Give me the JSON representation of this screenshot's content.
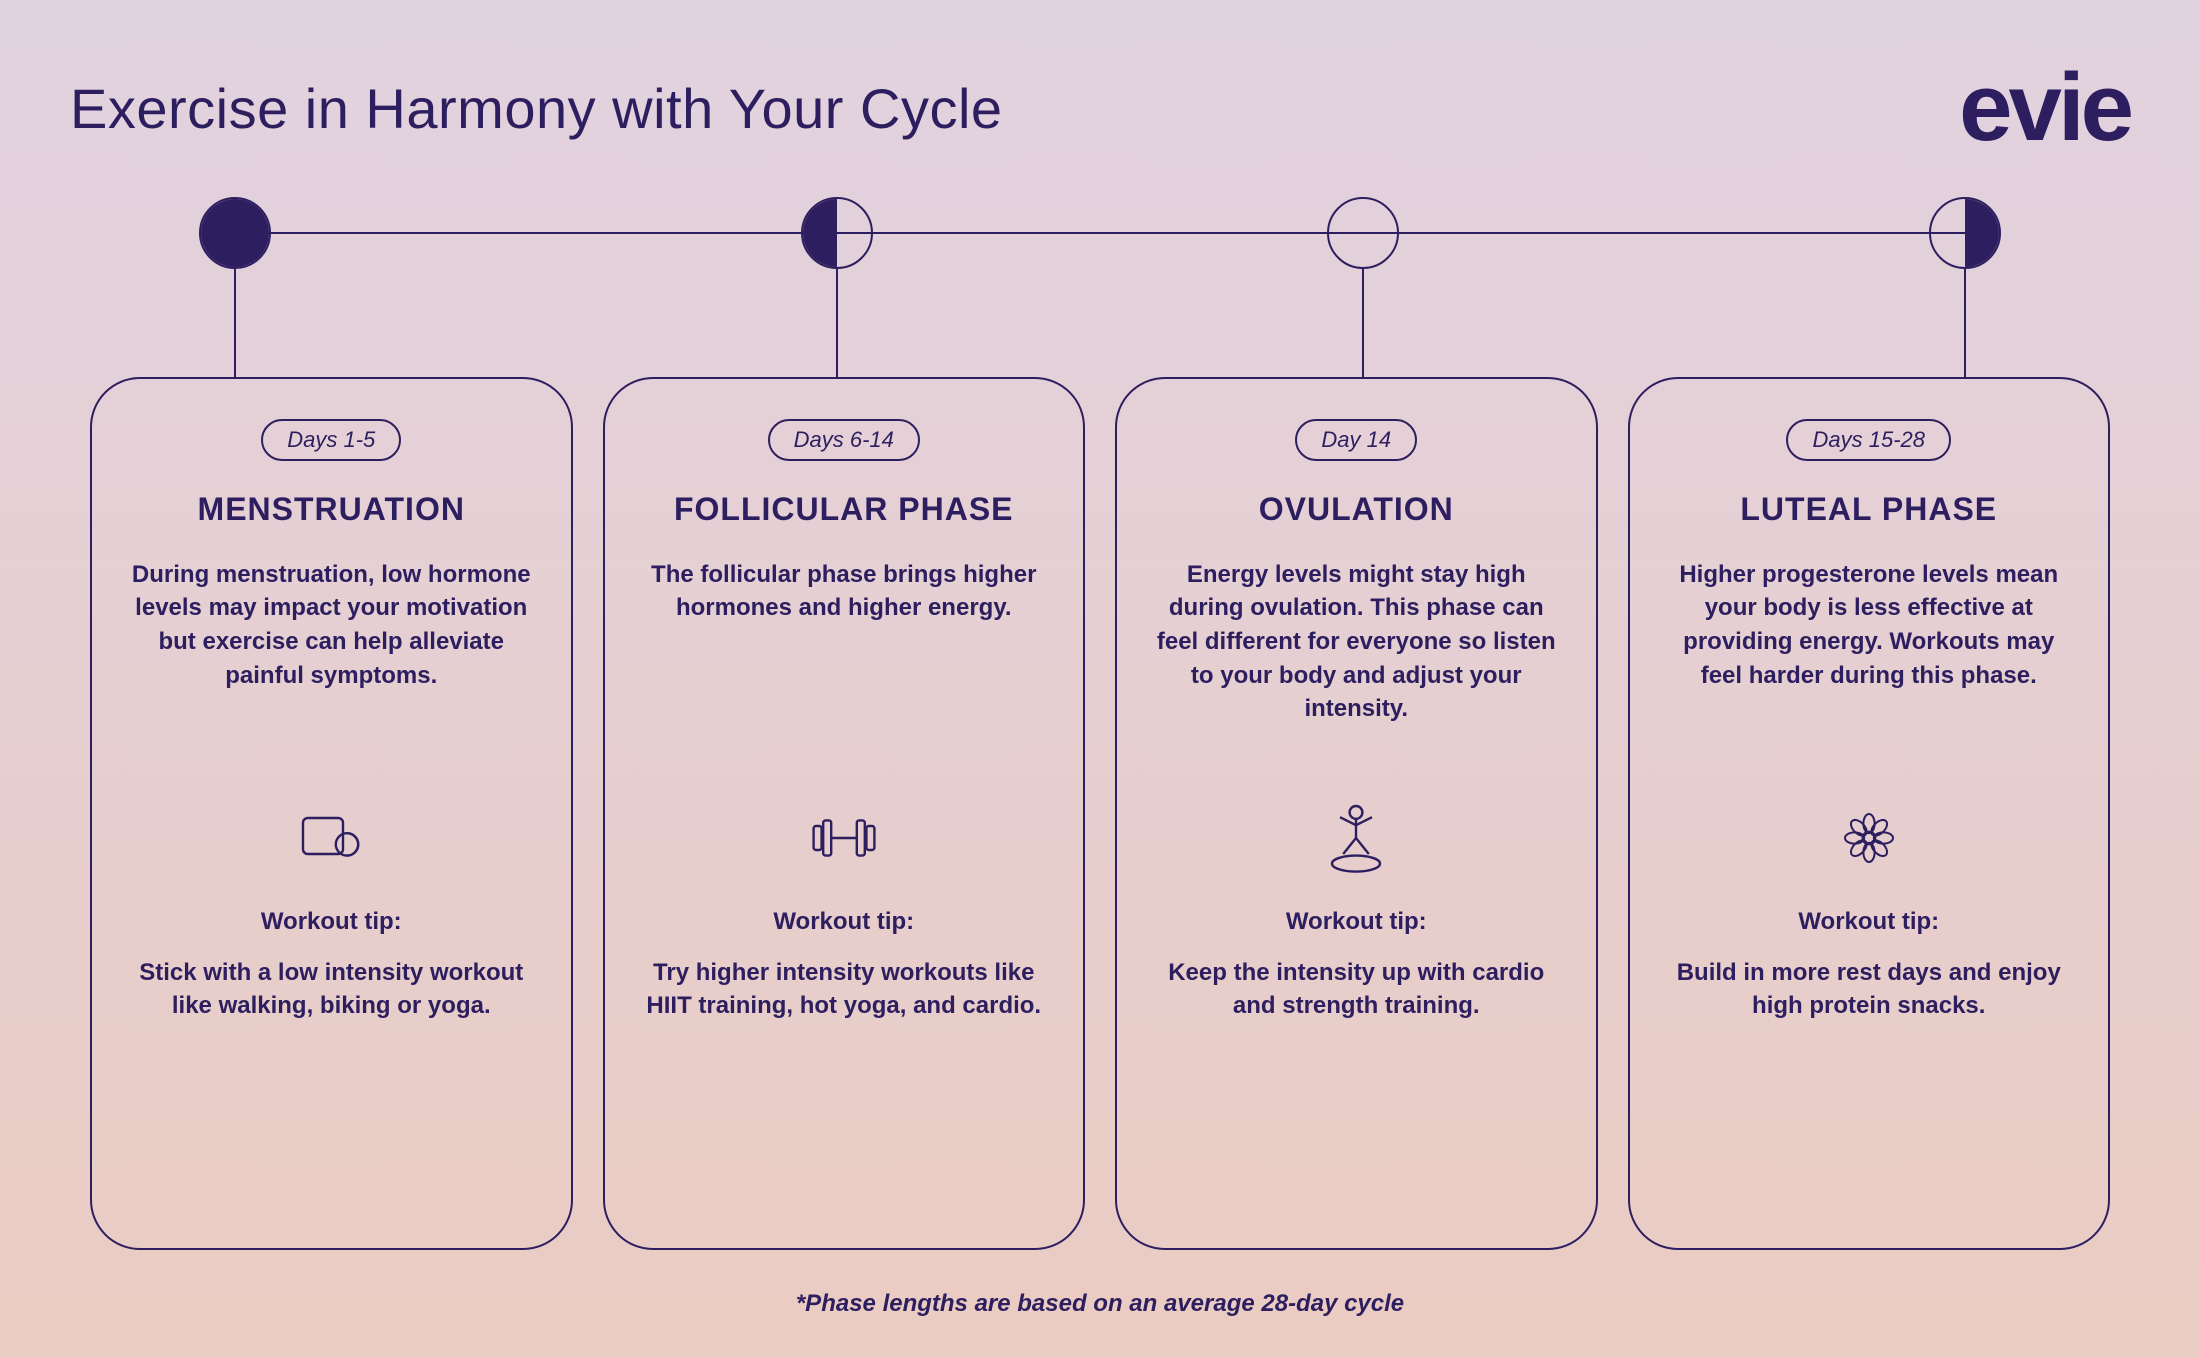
{
  "colors": {
    "ink": "#2d1e5f",
    "bg_top": "#e1d2e0",
    "bg_bottom": "#eaccc2",
    "card_bg_alpha": "rgba(255,255,255,0.0)"
  },
  "title": "Exercise in Harmony with Your Cycle",
  "logo": "evie",
  "footnote": "*Phase lengths are based on an average 28-day cycle",
  "layout": {
    "moon_positions_pct": [
      4,
      36,
      64,
      96
    ]
  },
  "phases": [
    {
      "days": "Days 1-5",
      "name": "MENSTRUATION",
      "moon": "full",
      "description": "During menstruation, low hormone levels may impact your motivation but exercise can help alleviate painful symptoms.",
      "icon": "yoga-mat",
      "tip_label": "Workout tip:",
      "tip": "Stick with a low intensity workout like walking, biking or yoga."
    },
    {
      "days": "Days 6-14",
      "name": "FOLLICULAR PHASE",
      "moon": "half-left",
      "description": "The follicular phase brings higher hormones and higher energy.",
      "icon": "dumbbell",
      "tip_label": "Workout tip:",
      "tip": "Try higher intensity workouts like HIIT training, hot yoga, and cardio."
    },
    {
      "days": "Day 14",
      "name": "OVULATION",
      "moon": "none",
      "description": "Energy levels might stay high during ovulation. This phase can feel different for everyone so listen to your body and adjust your intensity.",
      "icon": "figure",
      "tip_label": "Workout tip:",
      "tip": "Keep the intensity up with cardio and strength training."
    },
    {
      "days": "Days 15-28",
      "name": "LUTEAL PHASE",
      "moon": "half-right",
      "description": "Higher progesterone levels mean your body is less effective at providing energy. Workouts may feel harder during this phase.",
      "icon": "flower",
      "tip_label": "Workout tip:",
      "tip": "Build in more rest days and enjoy high protein snacks."
    }
  ]
}
